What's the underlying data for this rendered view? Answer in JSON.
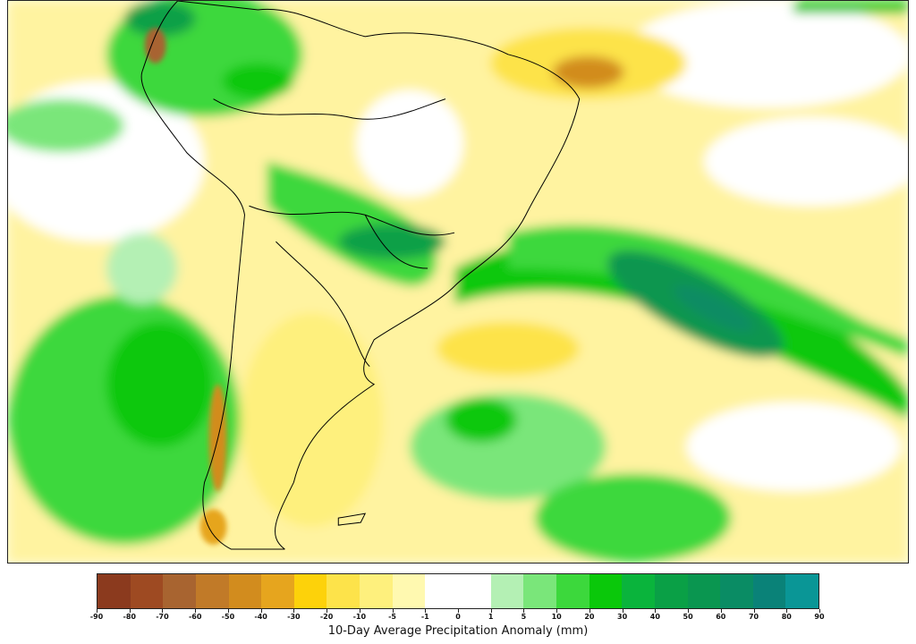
{
  "map": {
    "region": "South America",
    "colors": {
      "ocean_base": "#fffde0",
      "border": "#000000"
    }
  },
  "colorbar": {
    "label": "10-Day Average Precipitation Anomaly (mm)",
    "ticks": [
      "-90",
      "-80",
      "-70",
      "-60",
      "-50",
      "-40",
      "-30",
      "-20",
      "-10",
      "-5",
      "-1",
      "0",
      "1",
      "5",
      "10",
      "20",
      "30",
      "40",
      "50",
      "60",
      "70",
      "80",
      "90"
    ],
    "colors": [
      "#8b3a1e",
      "#9e4a22",
      "#a86430",
      "#c17a28",
      "#d28c1e",
      "#e6a51e",
      "#fdd20a",
      "#fde34a",
      "#fef07d",
      "#fff9b0",
      "#ffffff",
      "#ffffff",
      "#b4f0b4",
      "#7ae67a",
      "#3cd83c",
      "#0ac80a",
      "#0ab43c",
      "#0aa046",
      "#0a9650",
      "#0a8c64",
      "#0a8278",
      "#0a9696",
      "#0aa0b4"
    ]
  }
}
